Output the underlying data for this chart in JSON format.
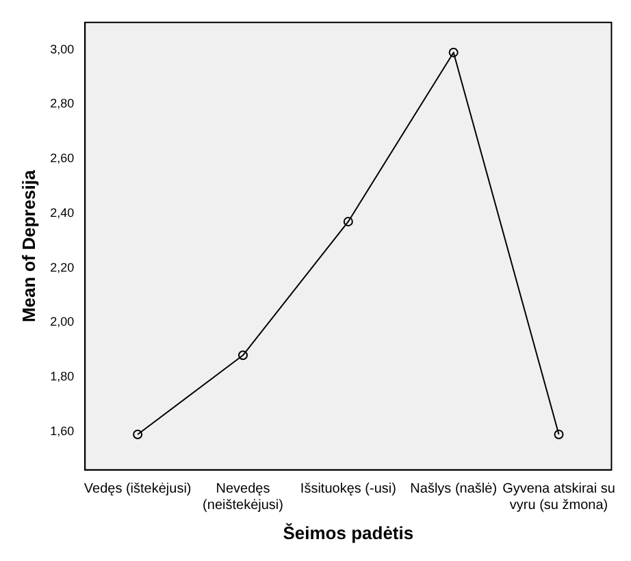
{
  "chart_data": {
    "type": "line",
    "xlabel": "Šeimos padėtis",
    "ylabel": "Mean of Depresija",
    "categories": [
      "Vedęs (ištekėjusi)",
      "Nevedęs (neištekėjusi)",
      "Išsituokęs (-usi)",
      "Našlys (našlė)",
      "Gyvena atskirai su vyru (su žmona)"
    ],
    "series": [
      {
        "color": "#000000",
        "values": [
          1.59,
          1.88,
          2.37,
          2.99,
          1.59
        ]
      }
    ],
    "ylim": [
      1.46,
      3.1
    ],
    "yticks": [
      {
        "value": 1.6,
        "label": "1,60"
      },
      {
        "value": 1.8,
        "label": "1,80"
      },
      {
        "value": 2.0,
        "label": "2,00"
      },
      {
        "value": 2.2,
        "label": "2,20"
      },
      {
        "value": 2.4,
        "label": "2,40"
      },
      {
        "value": 2.6,
        "label": "2,60"
      },
      {
        "value": 2.8,
        "label": "2,80"
      },
      {
        "value": 3.0,
        "label": "3,00"
      }
    ],
    "grid": false,
    "legend": false,
    "marker": "circle",
    "line_style": "solid"
  }
}
